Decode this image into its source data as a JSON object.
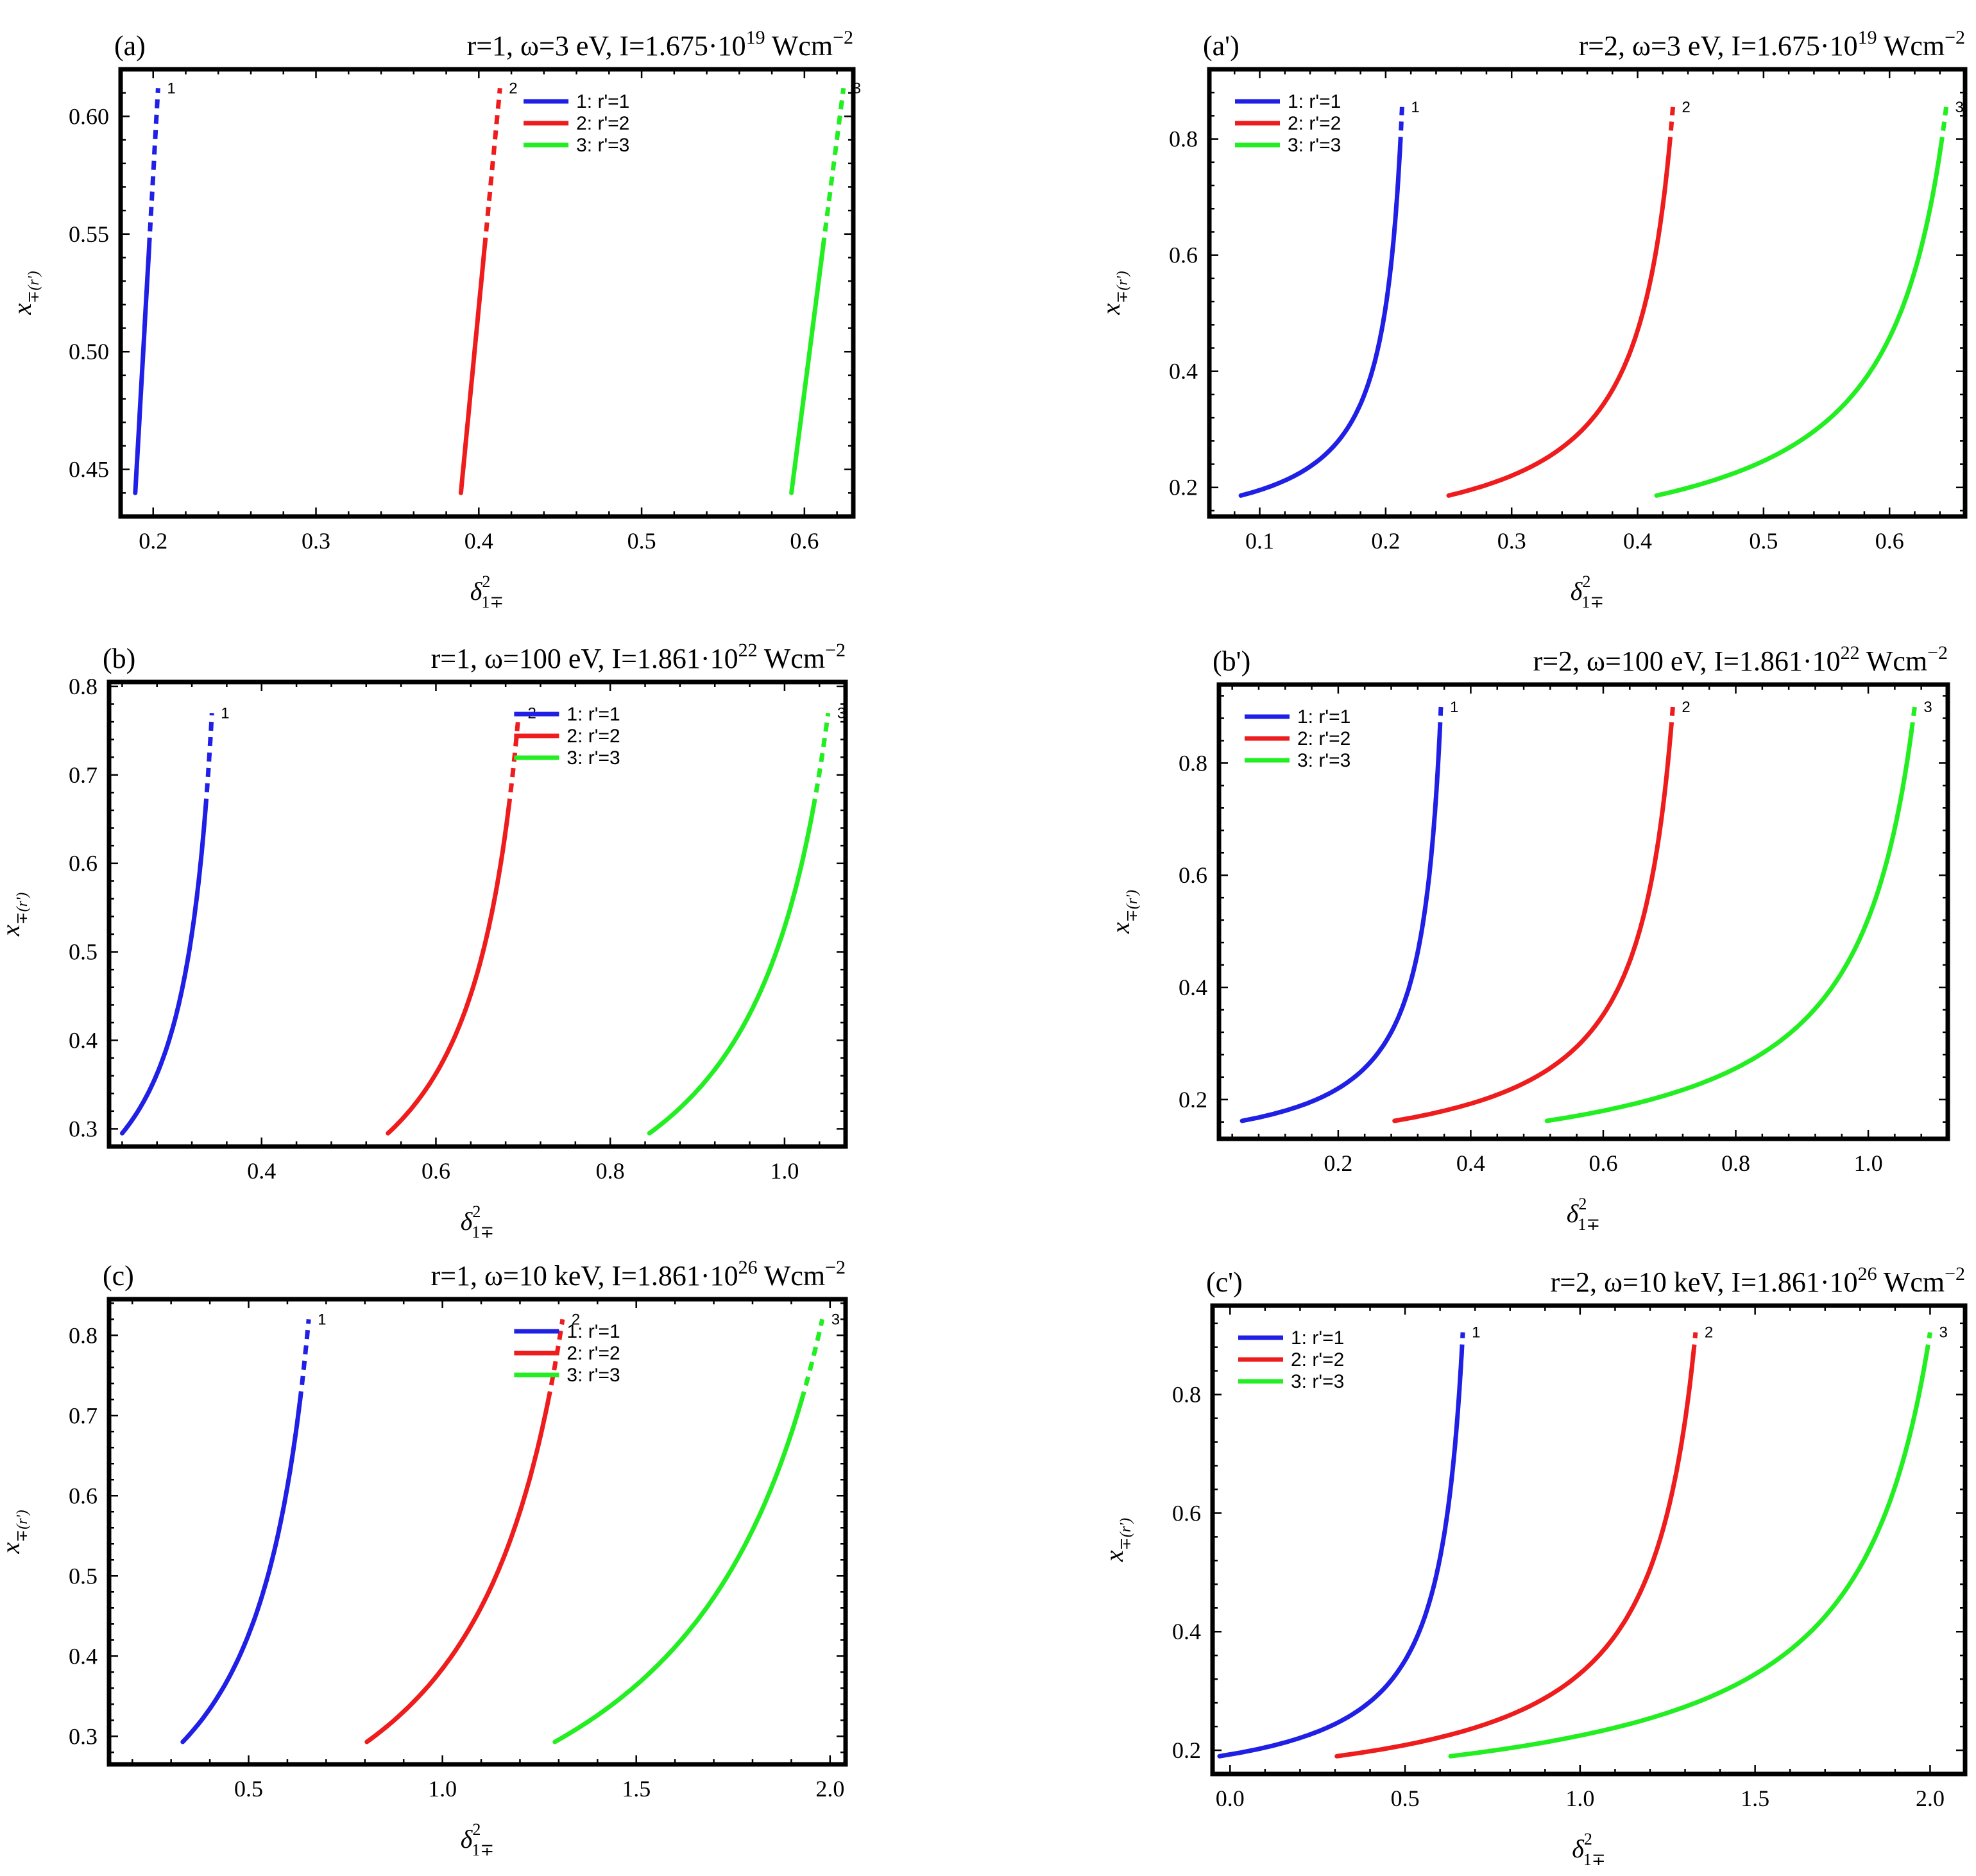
{
  "figure": {
    "curve_labels": [
      "1",
      "2",
      "3"
    ]
  },
  "colors": {
    "r1": "#1f1fe6",
    "r2": "#ee1c1c",
    "r3": "#22ee22",
    "frame": "#000000"
  },
  "chart_data": [
    {
      "id": "a",
      "type": "line",
      "panel_label": "(a)",
      "title": "r=1, ω=3 eV, I=1.675·10",
      "title_exp": "19",
      "title_unit": " Wcm",
      "title_unit_exp": "−2",
      "xlabel": "δ",
      "xlabel_sup": "2",
      "xlabel_sub": "1∓",
      "ylabel": "x",
      "ylabel_sub": "∓(r')",
      "xlim": [
        0.18,
        0.63
      ],
      "ylim": [
        0.43,
        0.62
      ],
      "xticks": [
        0.2,
        0.3,
        0.4,
        0.5,
        0.6
      ],
      "xtick_labels": [
        "0.2",
        "0.3",
        "0.4",
        "0.5",
        "0.6"
      ],
      "yticks": [
        0.45,
        0.5,
        0.55,
        0.6
      ],
      "ytick_labels": [
        "0.45",
        "0.50",
        "0.55",
        "0.60"
      ],
      "legend": {
        "position": "top-right",
        "entries": [
          "1: r'=1",
          "2: r'=2",
          "3: r'=3"
        ]
      },
      "curve_kind": "straight",
      "series": [
        {
          "name": "1: r'=1",
          "x_start": 0.189,
          "x_end": 0.203,
          "y_min": 0.44,
          "y_max": 0.612,
          "y_dash": 0.545,
          "k": 0
        },
        {
          "name": "2: r'=2",
          "x_start": 0.389,
          "x_end": 0.413,
          "y_min": 0.44,
          "y_max": 0.612,
          "y_dash": 0.545,
          "k": 0
        },
        {
          "name": "3: r'=3",
          "x_start": 0.592,
          "x_end": 0.624,
          "y_min": 0.44,
          "y_max": 0.612,
          "y_dash": 0.545,
          "k": 0
        }
      ]
    },
    {
      "id": "a-prime",
      "type": "line",
      "panel_label": "(a')",
      "title": "r=2, ω=3 eV, I=1.675·10",
      "title_exp": "19",
      "title_unit": " Wcm",
      "title_unit_exp": "−2",
      "xlabel": "δ",
      "xlabel_sup": "2",
      "xlabel_sub": "1∓",
      "ylabel": "x",
      "ylabel_sub": "∓(r')",
      "xlim": [
        0.06,
        0.66
      ],
      "ylim": [
        0.15,
        0.92
      ],
      "xticks": [
        0.1,
        0.2,
        0.3,
        0.4,
        0.5,
        0.6
      ],
      "xtick_labels": [
        "0.1",
        "0.2",
        "0.3",
        "0.4",
        "0.5",
        "0.6"
      ],
      "yticks": [
        0.2,
        0.4,
        0.6,
        0.8
      ],
      "ytick_labels": [
        "0.2",
        "0.4",
        "0.6",
        "0.8"
      ],
      "legend": {
        "position": "top-left",
        "entries": [
          "1: r'=1",
          "2: r'=2",
          "3: r'=3"
        ]
      },
      "curve_kind": "rational",
      "series": [
        {
          "name": "1: r'=1",
          "x_start": 0.085,
          "x_end": 0.213,
          "y_min": 0.186,
          "y_max": 0.855,
          "y_dash": 0.79,
          "k": 0.12
        },
        {
          "name": "2: r'=2",
          "x_start": 0.25,
          "x_end": 0.428,
          "y_min": 0.186,
          "y_max": 0.855,
          "y_dash": 0.79,
          "k": 0.16
        },
        {
          "name": "3: r'=3",
          "x_start": 0.415,
          "x_end": 0.645,
          "y_min": 0.186,
          "y_max": 0.855,
          "y_dash": 0.79,
          "k": 0.2
        }
      ]
    },
    {
      "id": "b",
      "type": "line",
      "panel_label": "(b)",
      "title": "r=1, ω=100 eV, I=1.861·10",
      "title_exp": "22",
      "title_unit": " Wcm",
      "title_unit_exp": "−2",
      "xlabel": "δ",
      "xlabel_sup": "2",
      "xlabel_sub": "1∓",
      "ylabel": "x",
      "ylabel_sub": "∓(r')",
      "xlim": [
        0.225,
        1.07
      ],
      "ylim": [
        0.28,
        0.805
      ],
      "xticks": [
        0.4,
        0.6,
        0.8,
        1.0
      ],
      "xtick_labels": [
        "0.4",
        "0.6",
        "0.8",
        "1.0"
      ],
      "yticks": [
        0.3,
        0.4,
        0.5,
        0.6,
        0.7,
        0.8
      ],
      "ytick_labels": [
        "0.3",
        "0.4",
        "0.5",
        "0.6",
        "0.7",
        "0.8"
      ],
      "legend": {
        "position": "top-right",
        "entries": [
          "1: r'=1",
          "2: r'=2",
          "3: r'=3"
        ]
      },
      "curve_kind": "rational",
      "series": [
        {
          "name": "1: r'=1",
          "x_start": 0.24,
          "x_end": 0.343,
          "y_min": 0.295,
          "y_max": 0.77,
          "y_dash": 0.665,
          "k": 0.35
        },
        {
          "name": "2: r'=2",
          "x_start": 0.545,
          "x_end": 0.695,
          "y_min": 0.295,
          "y_max": 0.77,
          "y_dash": 0.665,
          "k": 0.4
        },
        {
          "name": "3: r'=3",
          "x_start": 0.845,
          "x_end": 1.05,
          "y_min": 0.295,
          "y_max": 0.77,
          "y_dash": 0.665,
          "k": 0.45
        }
      ]
    },
    {
      "id": "b-prime",
      "type": "line",
      "panel_label": "(b')",
      "title": "r=2, ω=100 eV, I=1.861·10",
      "title_exp": "22",
      "title_unit": " Wcm",
      "title_unit_exp": "−2",
      "xlabel": "δ",
      "xlabel_sup": "2",
      "xlabel_sub": "1∓",
      "ylabel": "x",
      "ylabel_sub": "∓(r')",
      "xlim": [
        0.02,
        1.12
      ],
      "ylim": [
        0.13,
        0.94
      ],
      "xticks": [
        0.2,
        0.4,
        0.6,
        0.8,
        1.0
      ],
      "xtick_labels": [
        "0.2",
        "0.4",
        "0.6",
        "0.8",
        "1.0"
      ],
      "yticks": [
        0.2,
        0.4,
        0.6,
        0.8
      ],
      "ytick_labels": [
        "0.2",
        "0.4",
        "0.6",
        "0.8"
      ],
      "legend": {
        "position": "top-left",
        "entries": [
          "1: r'=1",
          "2: r'=2",
          "3: r'=3"
        ]
      },
      "curve_kind": "rational",
      "series": [
        {
          "name": "1: r'=1",
          "x_start": 0.055,
          "x_end": 0.355,
          "y_min": 0.162,
          "y_max": 0.9,
          "y_dash": 0.86,
          "k": 0.1
        },
        {
          "name": "2: r'=2",
          "x_start": 0.285,
          "x_end": 0.705,
          "y_min": 0.162,
          "y_max": 0.9,
          "y_dash": 0.86,
          "k": 0.13
        },
        {
          "name": "3: r'=3",
          "x_start": 0.515,
          "x_end": 1.07,
          "y_min": 0.162,
          "y_max": 0.9,
          "y_dash": 0.86,
          "k": 0.16
        }
      ]
    },
    {
      "id": "c",
      "type": "line",
      "panel_label": "(c)",
      "title": "r=1, ω=10 keV, I=1.861·10",
      "title_exp": "26",
      "title_unit": " Wcm",
      "title_unit_exp": "−2",
      "xlabel": "δ",
      "xlabel_sup": "2",
      "xlabel_sub": "1∓",
      "ylabel": "x",
      "ylabel_sub": "∓(r')",
      "xlim": [
        0.14,
        2.04
      ],
      "ylim": [
        0.265,
        0.845
      ],
      "xticks": [
        0.5,
        1.0,
        1.5,
        2.0
      ],
      "xtick_labels": [
        "0.5",
        "1.0",
        "1.5",
        "2.0"
      ],
      "yticks": [
        0.3,
        0.4,
        0.5,
        0.6,
        0.7,
        0.8
      ],
      "ytick_labels": [
        "0.3",
        "0.4",
        "0.5",
        "0.6",
        "0.7",
        "0.8"
      ],
      "legend": {
        "position": "top-right",
        "entries": [
          "1: r'=1",
          "2: r'=2",
          "3: r'=3"
        ]
      },
      "curve_kind": "rational",
      "series": [
        {
          "name": "1: r'=1",
          "x_start": 0.33,
          "x_end": 0.655,
          "y_min": 0.293,
          "y_max": 0.82,
          "y_dash": 0.72,
          "k": 0.45
        },
        {
          "name": "2: r'=2",
          "x_start": 0.805,
          "x_end": 1.31,
          "y_min": 0.293,
          "y_max": 0.82,
          "y_dash": 0.72,
          "k": 0.5
        },
        {
          "name": "3: r'=3",
          "x_start": 1.29,
          "x_end": 1.98,
          "y_min": 0.293,
          "y_max": 0.82,
          "y_dash": 0.72,
          "k": 0.55
        }
      ]
    },
    {
      "id": "c-prime",
      "type": "line",
      "panel_label": "(c')",
      "title": "r=2, ω=10 keV, I=1.861·10",
      "title_exp": "26",
      "title_unit": " Wcm",
      "title_unit_exp": "−2",
      "xlabel": "δ",
      "xlabel_sup": "2",
      "xlabel_sub": "1∓",
      "ylabel": "x",
      "ylabel_sub": "∓(r')",
      "xlim": [
        -0.05,
        2.1
      ],
      "ylim": [
        0.16,
        0.95
      ],
      "xticks": [
        0.0,
        0.5,
        1.0,
        1.5,
        2.0
      ],
      "xtick_labels": [
        "0.0",
        "0.5",
        "1.0",
        "1.5",
        "2.0"
      ],
      "yticks": [
        0.2,
        0.4,
        0.6,
        0.8
      ],
      "ytick_labels": [
        "0.2",
        "0.4",
        "0.6",
        "0.8"
      ],
      "legend": {
        "position": "top-left",
        "entries": [
          "1: r'=1",
          "2: r'=2",
          "3: r'=3"
        ]
      },
      "curve_kind": "rational",
      "series": [
        {
          "name": "1: r'=1",
          "x_start": -0.03,
          "x_end": 0.665,
          "y_min": 0.19,
          "y_max": 0.905,
          "y_dash": 0.875,
          "k": 0.1
        },
        {
          "name": "2: r'=2",
          "x_start": 0.305,
          "x_end": 1.33,
          "y_min": 0.19,
          "y_max": 0.905,
          "y_dash": 0.875,
          "k": 0.13
        },
        {
          "name": "3: r'=3",
          "x_start": 0.63,
          "x_end": 2.0,
          "y_min": 0.19,
          "y_max": 0.905,
          "y_dash": 0.875,
          "k": 0.16
        }
      ]
    }
  ]
}
